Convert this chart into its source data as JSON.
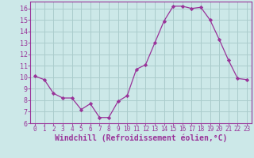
{
  "x": [
    0,
    1,
    2,
    3,
    4,
    5,
    6,
    7,
    8,
    9,
    10,
    11,
    12,
    13,
    14,
    15,
    16,
    17,
    18,
    19,
    20,
    21,
    22,
    23
  ],
  "y": [
    10.1,
    9.8,
    8.6,
    8.2,
    8.2,
    7.2,
    7.7,
    6.5,
    6.5,
    7.9,
    8.4,
    10.7,
    11.1,
    13.0,
    14.9,
    16.2,
    16.2,
    16.0,
    16.1,
    15.0,
    13.3,
    11.5,
    9.9,
    9.8
  ],
  "line_color": "#993399",
  "marker": "D",
  "marker_size": 2.2,
  "bg_color": "#cce8e8",
  "grid_color": "#aacccc",
  "xlabel": "Windchill (Refroidissement éolien,°C)",
  "xlabel_fontsize": 7,
  "ylabel_ticks": [
    6,
    7,
    8,
    9,
    10,
    11,
    12,
    13,
    14,
    15,
    16
  ],
  "xlim": [
    -0.5,
    23.5
  ],
  "ylim": [
    6,
    16.6
  ],
  "tick_color": "#993399",
  "label_color": "#993399",
  "tick_fontsize": 5.5,
  "ytick_fontsize": 6.0
}
